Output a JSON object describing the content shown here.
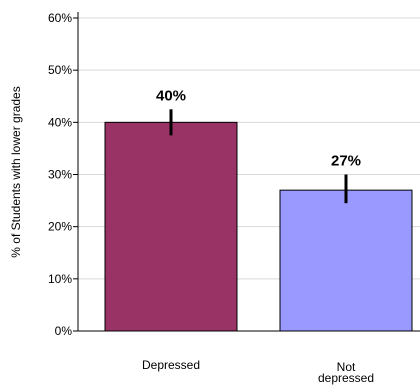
{
  "chart_data": {
    "type": "bar",
    "title": "",
    "xlabel": "",
    "ylabel": "% of Students with lower grades",
    "categories": [
      [
        "Depressed"
      ],
      [
        "Not",
        "depressed"
      ]
    ],
    "values": [
      40,
      27
    ],
    "value_labels": [
      "40%",
      "27%"
    ],
    "error": [
      {
        "low": 37.5,
        "high": 42.5
      },
      {
        "low": 24.5,
        "high": 30
      }
    ],
    "colors": [
      "#993366",
      "#9999ff"
    ],
    "ylim": [
      0,
      60
    ],
    "yticks": [
      0,
      10,
      20,
      30,
      40,
      50,
      60
    ],
    "ytick_labels": [
      "0%",
      "10%",
      "20%",
      "30%",
      "40%",
      "50%",
      "60%"
    ],
    "grid": true
  }
}
